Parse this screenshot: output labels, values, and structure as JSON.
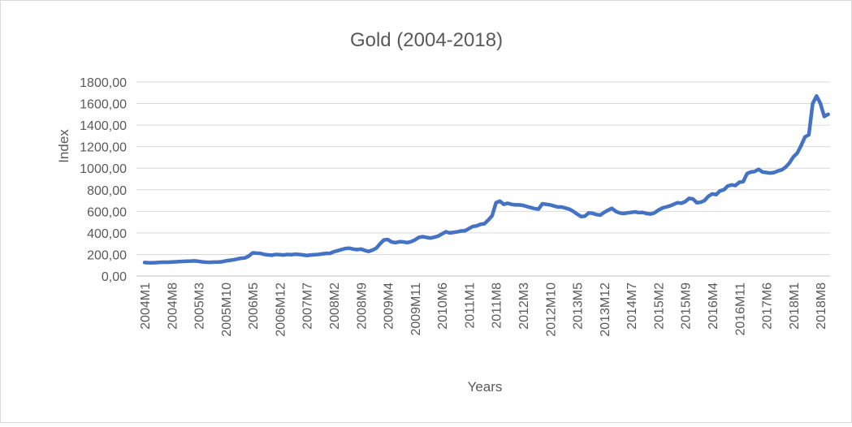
{
  "chart_data": {
    "type": "line",
    "title": "Gold (2004-2018)",
    "x_label": "Years",
    "y_label": "Index",
    "categories": [
      "2004M1",
      null,
      null,
      null,
      null,
      null,
      null,
      "2004M8",
      null,
      null,
      null,
      null,
      null,
      null,
      "2005M3",
      null,
      null,
      null,
      null,
      null,
      null,
      "2005M10",
      null,
      null,
      null,
      null,
      null,
      null,
      "2006M5",
      null,
      null,
      null,
      null,
      null,
      null,
      "2006M12",
      null,
      null,
      null,
      null,
      null,
      null,
      "2007M7",
      null,
      null,
      null,
      null,
      null,
      null,
      "2008M2",
      null,
      null,
      null,
      null,
      null,
      null,
      "2008M9",
      null,
      null,
      null,
      null,
      null,
      null,
      "2009M4",
      null,
      null,
      null,
      null,
      null,
      null,
      "2009M11",
      null,
      null,
      null,
      null,
      null,
      null,
      "2010M6",
      null,
      null,
      null,
      null,
      null,
      null,
      "2011M1",
      null,
      null,
      null,
      null,
      null,
      null,
      "2011M8",
      null,
      null,
      null,
      null,
      null,
      null,
      "2012M3",
      null,
      null,
      null,
      null,
      null,
      null,
      "2012M10",
      null,
      null,
      null,
      null,
      null,
      null,
      "2013M5",
      null,
      null,
      null,
      null,
      null,
      null,
      "2013M12",
      null,
      null,
      null,
      null,
      null,
      null,
      "2014M7",
      null,
      null,
      null,
      null,
      null,
      null,
      "2015M2",
      null,
      null,
      null,
      null,
      null,
      null,
      "2015M9",
      null,
      null,
      null,
      null,
      null,
      null,
      "2016M4",
      null,
      null,
      null,
      null,
      null,
      null,
      "2016M11",
      null,
      null,
      null,
      null,
      null,
      null,
      "2017M6",
      null,
      null,
      null,
      null,
      null,
      null,
      "2018M1",
      null,
      null,
      null,
      null,
      null,
      null,
      "2018M8",
      null,
      null
    ],
    "series": [
      {
        "color": "#4472c4",
        "values": [
          125,
          123,
          122,
          124,
          127,
          128,
          128,
          130,
          132,
          134,
          136,
          137,
          138,
          140,
          136,
          131,
          128,
          127,
          129,
          130,
          132,
          140,
          145,
          150,
          158,
          165,
          168,
          185,
          215,
          212,
          210,
          200,
          196,
          193,
          200,
          198,
          195,
          200,
          198,
          202,
          200,
          196,
          190,
          195,
          198,
          200,
          205,
          210,
          210,
          225,
          235,
          245,
          255,
          258,
          250,
          245,
          250,
          238,
          228,
          240,
          258,
          300,
          335,
          338,
          315,
          310,
          318,
          316,
          310,
          318,
          335,
          358,
          365,
          358,
          352,
          360,
          370,
          390,
          410,
          400,
          405,
          410,
          418,
          420,
          440,
          460,
          465,
          480,
          485,
          520,
          560,
          680,
          695,
          665,
          675,
          665,
          660,
          660,
          655,
          645,
          635,
          625,
          620,
          670,
          665,
          660,
          650,
          640,
          640,
          630,
          620,
          600,
          575,
          552,
          555,
          585,
          582,
          570,
          565,
          590,
          610,
          628,
          600,
          585,
          580,
          585,
          590,
          595,
          588,
          590,
          580,
          575,
          585,
          610,
          630,
          640,
          650,
          665,
          680,
          675,
          690,
          720,
          715,
          680,
          685,
          700,
          740,
          762,
          755,
          790,
          800,
          835,
          845,
          840,
          870,
          875,
          950,
          965,
          970,
          990,
          965,
          960,
          955,
          960,
          975,
          985,
          1010,
          1050,
          1105,
          1140,
          1210,
          1290,
          1310,
          1600,
          1670,
          1600,
          1480,
          1500
        ]
      }
    ],
    "ylim": [
      0,
      1800
    ],
    "yticks": [
      {
        "value": 0,
        "label": "0,00"
      },
      {
        "value": 200,
        "label": "200,00"
      },
      {
        "value": 400,
        "label": "400,00"
      },
      {
        "value": 600,
        "label": "600,00"
      },
      {
        "value": 800,
        "label": "800,00"
      },
      {
        "value": 1000,
        "label": "1000,00"
      },
      {
        "value": 1200,
        "label": "1200,00"
      },
      {
        "value": 1400,
        "label": "1400,00"
      },
      {
        "value": 1600,
        "label": "1600,00"
      },
      {
        "value": 1800,
        "label": "1800,00"
      }
    ],
    "grid": true
  }
}
